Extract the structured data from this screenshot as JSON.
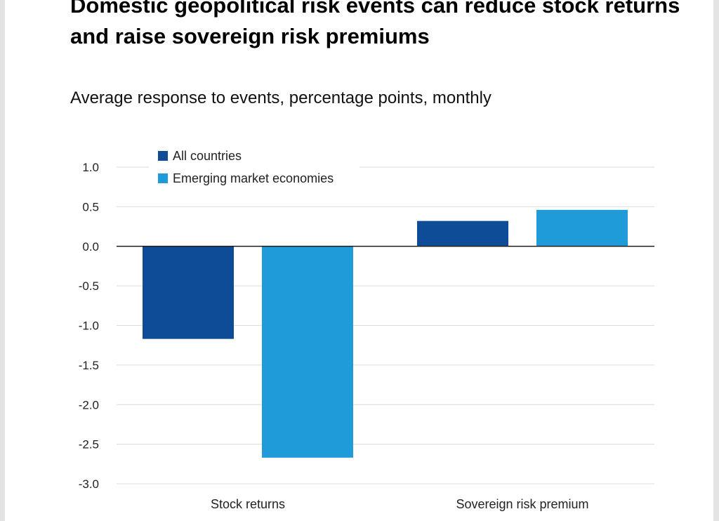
{
  "chart_data": {
    "type": "bar",
    "title": "Domestic geopolitical risk events can reduce stock returns and raise sovereign risk premiums",
    "subtitle": "Average response to events, percentage points, monthly",
    "categories": [
      "Stock returns",
      "Sovereign risk premium"
    ],
    "series": [
      {
        "name": "All countries",
        "values": [
          -1.17,
          0.32
        ],
        "color": "#0f4c97"
      },
      {
        "name": "Emerging market economies",
        "values": [
          -2.67,
          0.46
        ],
        "color": "#1f9bd9"
      }
    ],
    "ylim": [
      -3.0,
      1.0
    ],
    "yticks": [
      "1.0",
      "0.5",
      "0.0",
      "-0.5",
      "-1.0",
      "-1.5",
      "-2.0",
      "-2.5",
      "-3.0"
    ],
    "ytick_values": [
      1.0,
      0.5,
      0.0,
      -0.5,
      -1.0,
      -1.5,
      -2.0,
      -2.5,
      -3.0
    ],
    "xlabel": "",
    "ylabel": "",
    "grid": true,
    "legend": "top-left"
  }
}
